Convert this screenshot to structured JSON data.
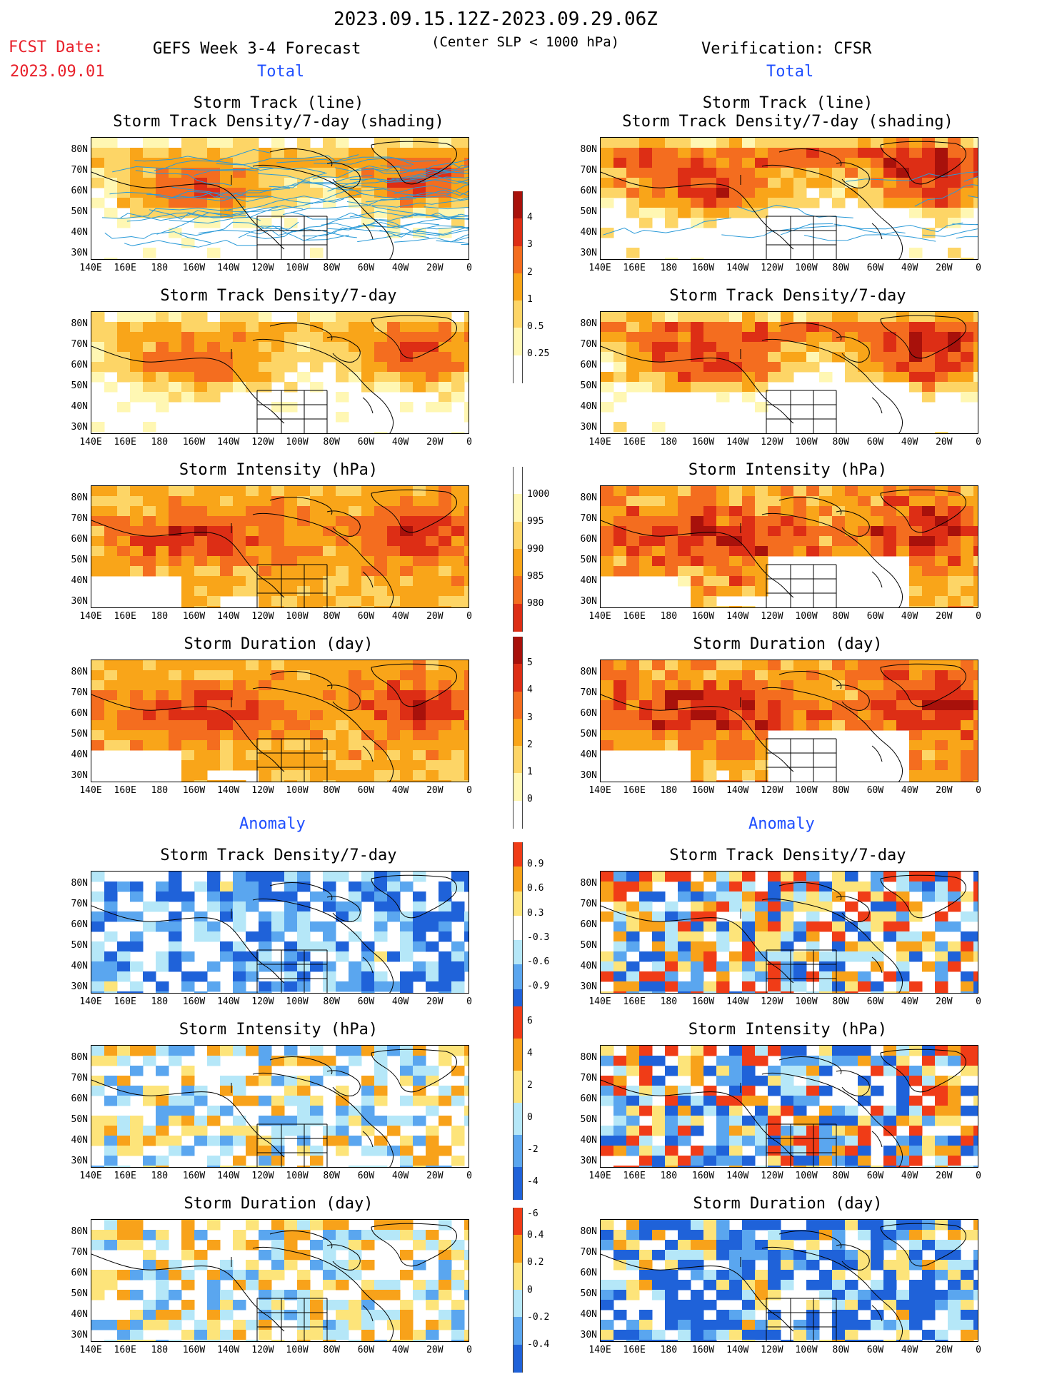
{
  "header": {
    "date_range": "2023.09.15.12Z-2023.09.29.06Z",
    "fcst_label": "FCST Date:",
    "fcst_date": "2023.09.01",
    "left_model": "GEFS Week 3-4 Forecast",
    "criterion": "(Center SLP < 1000 hPa)",
    "right_model": "Verification: CFSR",
    "section_total": "Total",
    "section_anomaly": "Anomaly"
  },
  "axes": {
    "lat_ticks": [
      "80N",
      "70N",
      "60N",
      "50N",
      "40N",
      "30N"
    ],
    "lon_ticks": [
      "140E",
      "160E",
      "180",
      "160W",
      "140W",
      "120W",
      "100W",
      "80W",
      "60W",
      "40W",
      "20W",
      "0"
    ]
  },
  "panels": {
    "track_line": "Storm Track (line)",
    "track_shading": "Storm Track Density/7-day (shading)",
    "track_density": "Storm Track Density/7-day",
    "intensity": "Storm Intensity (hPa)",
    "duration": "Storm Duration (day)"
  },
  "colors": {
    "c1": "#fff7b3",
    "c2": "#fdd566",
    "c3": "#f9a519",
    "c4": "#f46d1f",
    "c5": "#dd2e15",
    "c6": "#a8110b",
    "a_pos1": "#fde47a",
    "a_pos2": "#f8a21a",
    "a_pos3": "#f03c17",
    "a_neg1": "#b5e7f8",
    "a_neg2": "#5aa6ef",
    "a_neg3": "#1f62d9",
    "track": "#2a9ad8",
    "land": "#000000"
  },
  "chart_data": [
    {
      "type": "heatmap",
      "title": "Storm Track Density/7-day (shading)",
      "legend": {
        "levels": [
          0.25,
          0.5,
          1,
          2,
          3,
          4
        ]
      }
    },
    {
      "type": "heatmap",
      "title": "Storm Intensity (hPa)",
      "legend": {
        "levels": [
          1000,
          995,
          990,
          985,
          980
        ]
      }
    },
    {
      "type": "heatmap",
      "title": "Storm Duration (day)",
      "legend": {
        "levels": [
          5,
          4,
          3,
          2,
          1,
          0
        ]
      }
    },
    {
      "type": "heatmap",
      "title": "Anomaly Storm Track Density/7-day",
      "legend": {
        "levels": [
          0.9,
          0.6,
          0.3,
          -0.3,
          -0.6,
          -0.9
        ]
      }
    },
    {
      "type": "heatmap",
      "title": "Anomaly Storm Intensity (hPa)",
      "legend": {
        "levels": [
          6,
          4,
          2,
          0,
          -2,
          -4,
          -6
        ]
      }
    },
    {
      "type": "heatmap",
      "title": "Anomaly Storm Duration (day)",
      "legend": {
        "levels": [
          0.4,
          0.2,
          0,
          -0.2,
          -0.4
        ]
      }
    }
  ],
  "colorbars": {
    "density": [
      "4",
      "3",
      "2",
      "1",
      "0.5",
      "0.25"
    ],
    "intensity": [
      "1000",
      "995",
      "990",
      "985",
      "980"
    ],
    "duration": [
      "5",
      "4",
      "3",
      "2",
      "1",
      "0"
    ],
    "a_density": [
      "0.9",
      "0.6",
      "0.3",
      "-0.3",
      "-0.6",
      "-0.9"
    ],
    "a_intensity": [
      "6",
      "4",
      "2",
      "0",
      "-2",
      "-4",
      "-6"
    ],
    "a_duration": [
      "0.4",
      "0.2",
      "0",
      "-0.2",
      "-0.4"
    ]
  }
}
